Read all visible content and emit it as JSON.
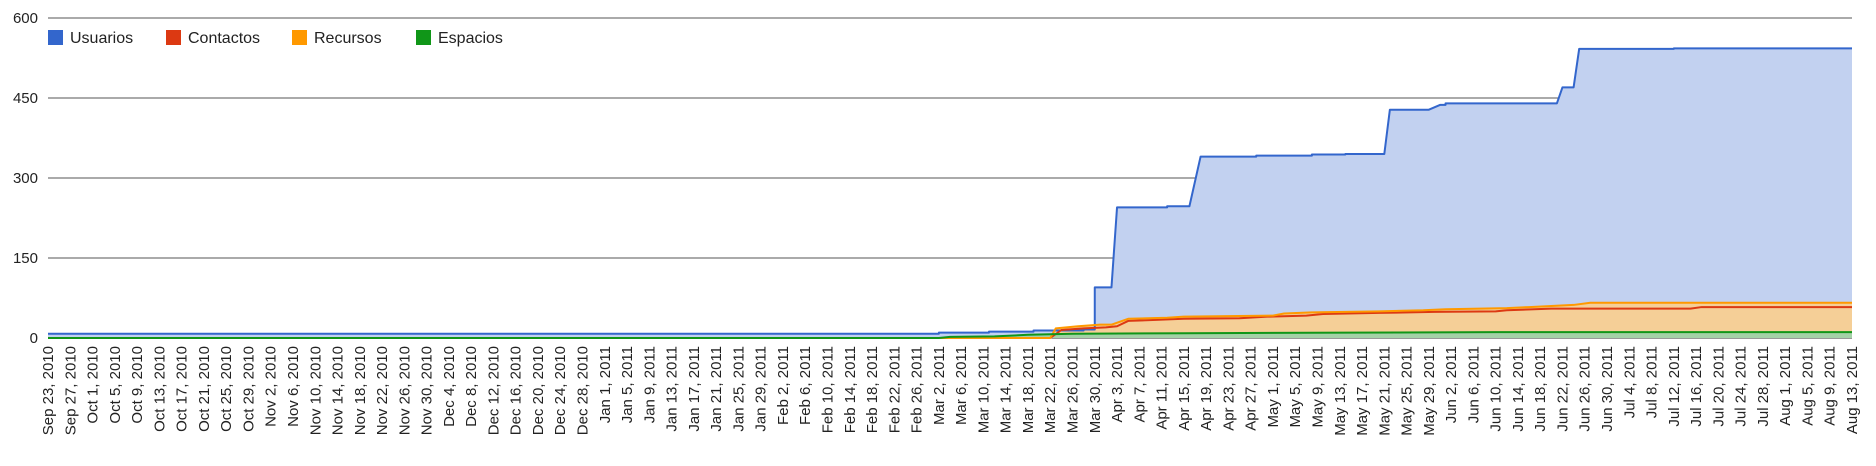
{
  "chart_data": {
    "type": "area",
    "title": "",
    "xlabel": "",
    "ylabel": "",
    "ylim": [
      0,
      600
    ],
    "yticks": [
      0,
      150,
      300,
      450,
      600
    ],
    "x_start": "2010-09-23",
    "x_end": "2011-08-13",
    "x_tick_labels": [
      "Sep 23, 2010",
      "Sep 27, 2010",
      "Oct 1, 2010",
      "Oct 5, 2010",
      "Oct 9, 2010",
      "Oct 13, 2010",
      "Oct 17, 2010",
      "Oct 21, 2010",
      "Oct 25, 2010",
      "Oct 29, 2010",
      "Nov 2, 2010",
      "Nov 6, 2010",
      "Nov 10, 2010",
      "Nov 14, 2010",
      "Nov 18, 2010",
      "Nov 22, 2010",
      "Nov 26, 2010",
      "Nov 30, 2010",
      "Dec 4, 2010",
      "Dec 8, 2010",
      "Dec 12, 2010",
      "Dec 16, 2010",
      "Dec 20, 2010",
      "Dec 24, 2010",
      "Dec 28, 2010",
      "Jan 1, 2011",
      "Jan 5, 2011",
      "Jan 9, 2011",
      "Jan 13, 2011",
      "Jan 17, 2011",
      "Jan 21, 2011",
      "Jan 25, 2011",
      "Jan 29, 2011",
      "Feb 2, 2011",
      "Feb 6, 2011",
      "Feb 10, 2011",
      "Feb 14, 2011",
      "Feb 18, 2011",
      "Feb 22, 2011",
      "Feb 26, 2011",
      "Mar 2, 2011",
      "Mar 6, 2011",
      "Mar 10, 2011",
      "Mar 14, 2011",
      "Mar 18, 2011",
      "Mar 22, 2011",
      "Mar 26, 2011",
      "Mar 30, 2011",
      "Apr 3, 2011",
      "Apr 7, 2011",
      "Apr 11, 2011",
      "Apr 15, 2011",
      "Apr 19, 2011",
      "Apr 23, 2011",
      "Apr 27, 2011",
      "May 1, 2011",
      "May 5, 2011",
      "May 9, 2011",
      "May 13, 2011",
      "May 17, 2011",
      "May 21, 2011",
      "May 25, 2011",
      "May 29, 2011",
      "Jun 2, 2011",
      "Jun 6, 2011",
      "Jun 10, 2011",
      "Jun 14, 2011",
      "Jun 18, 2011",
      "Jun 22, 2011",
      "Jun 26, 2011",
      "Jun 30, 2011",
      "Jul 4, 2011",
      "Jul 8, 2011",
      "Jul 12, 2011",
      "Jul 16, 2011",
      "Jul 20, 2011",
      "Jul 24, 2011",
      "Jul 28, 2011",
      "Aug 1, 2011",
      "Aug 5, 2011",
      "Aug 9, 2011",
      "Aug 13, 2011"
    ],
    "grid": true,
    "legend_position": "top-left",
    "series": [
      {
        "name": "Usuarios",
        "color": "#3366cc",
        "fill": "#c2d1f0",
        "points": [
          [
            "2010-09-23",
            8
          ],
          [
            "2011-03-02",
            8
          ],
          [
            "2011-03-02",
            10
          ],
          [
            "2011-03-11",
            10
          ],
          [
            "2011-03-11",
            12
          ],
          [
            "2011-03-19",
            12
          ],
          [
            "2011-03-19",
            14
          ],
          [
            "2011-03-28",
            14
          ],
          [
            "2011-03-28",
            16
          ],
          [
            "2011-03-30",
            16
          ],
          [
            "2011-03-30",
            95
          ],
          [
            "2011-04-02",
            95
          ],
          [
            "2011-04-03",
            245
          ],
          [
            "2011-04-12",
            245
          ],
          [
            "2011-04-12",
            247
          ],
          [
            "2011-04-16",
            247
          ],
          [
            "2011-04-18",
            340
          ],
          [
            "2011-04-28",
            340
          ],
          [
            "2011-04-28",
            342
          ],
          [
            "2011-05-08",
            342
          ],
          [
            "2011-05-08",
            344
          ],
          [
            "2011-05-14",
            344
          ],
          [
            "2011-05-14",
            345
          ],
          [
            "2011-05-21",
            345
          ],
          [
            "2011-05-22",
            428
          ],
          [
            "2011-05-29",
            428
          ],
          [
            "2011-05-31",
            437
          ],
          [
            "2011-06-01",
            437
          ],
          [
            "2011-06-01",
            440
          ],
          [
            "2011-06-21",
            440
          ],
          [
            "2011-06-22",
            470
          ],
          [
            "2011-06-24",
            470
          ],
          [
            "2011-06-25",
            542
          ],
          [
            "2011-07-12",
            542
          ],
          [
            "2011-07-12",
            543
          ],
          [
            "2011-08-13",
            543
          ]
        ]
      },
      {
        "name": "Contactos",
        "color": "#dc3912",
        "fill": "#e8b7a5",
        "points": [
          [
            "2010-09-23",
            0
          ],
          [
            "2011-03-22",
            0
          ],
          [
            "2011-03-24",
            15
          ],
          [
            "2011-03-28",
            18
          ],
          [
            "2011-04-01",
            20
          ],
          [
            "2011-04-03",
            22
          ],
          [
            "2011-04-05",
            32
          ],
          [
            "2011-04-10",
            34
          ],
          [
            "2011-04-15",
            36
          ],
          [
            "2011-04-25",
            37
          ],
          [
            "2011-04-30",
            40
          ],
          [
            "2011-05-07",
            42
          ],
          [
            "2011-05-10",
            45
          ],
          [
            "2011-05-20",
            47
          ],
          [
            "2011-05-30",
            49
          ],
          [
            "2011-06-10",
            50
          ],
          [
            "2011-06-12",
            52
          ],
          [
            "2011-06-20",
            55
          ],
          [
            "2011-07-15",
            55
          ],
          [
            "2011-07-17",
            58
          ],
          [
            "2011-08-13",
            58
          ]
        ]
      },
      {
        "name": "Recursos",
        "color": "#ff9900",
        "fill": "#f5cf97",
        "points": [
          [
            "2010-09-23",
            0
          ],
          [
            "2011-03-22",
            0
          ],
          [
            "2011-03-23",
            18
          ],
          [
            "2011-03-27",
            22
          ],
          [
            "2011-03-31",
            25
          ],
          [
            "2011-04-02",
            25
          ],
          [
            "2011-04-05",
            36
          ],
          [
            "2011-04-12",
            38
          ],
          [
            "2011-04-15",
            40
          ],
          [
            "2011-05-01",
            42
          ],
          [
            "2011-05-03",
            46
          ],
          [
            "2011-05-08",
            48
          ],
          [
            "2011-05-20",
            50
          ],
          [
            "2011-05-28",
            52
          ],
          [
            "2011-06-01",
            54
          ],
          [
            "2011-06-12",
            56
          ],
          [
            "2011-06-16",
            58
          ],
          [
            "2011-06-20",
            60
          ],
          [
            "2011-06-24",
            62
          ],
          [
            "2011-06-27",
            66
          ],
          [
            "2011-08-13",
            66
          ]
        ]
      },
      {
        "name": "Espacios",
        "color": "#109618",
        "fill": "#a4d1a7",
        "points": [
          [
            "2010-09-23",
            0
          ],
          [
            "2011-03-02",
            0
          ],
          [
            "2011-03-04",
            2
          ],
          [
            "2011-03-12",
            3
          ],
          [
            "2011-03-18",
            6
          ],
          [
            "2011-03-26",
            8
          ],
          [
            "2011-04-15",
            9
          ],
          [
            "2011-05-15",
            10
          ],
          [
            "2011-06-10",
            11
          ],
          [
            "2011-08-13",
            11
          ]
        ]
      }
    ]
  }
}
